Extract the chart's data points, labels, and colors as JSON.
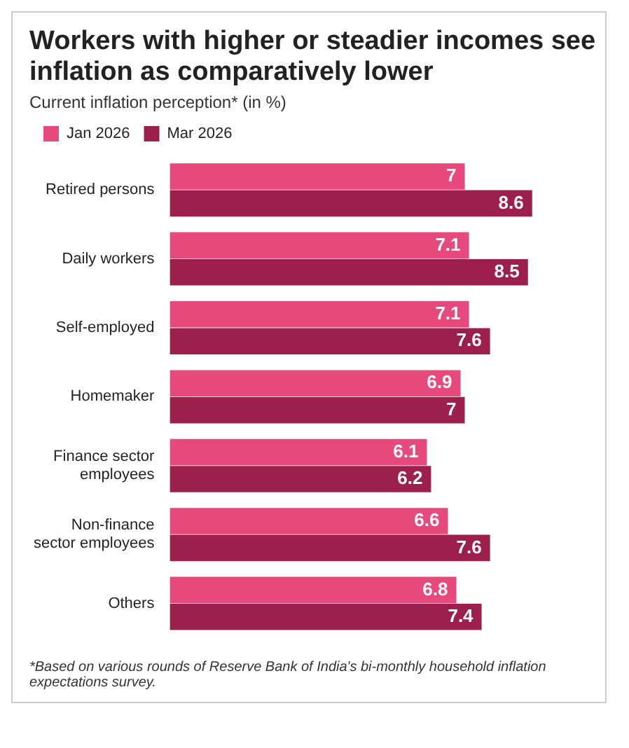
{
  "chart_data": {
    "type": "bar",
    "orientation": "horizontal",
    "title": "Workers with higher or steadier incomes see inflation as comparatively lower",
    "subtitle": "Current inflation perception* (in %)",
    "categories": [
      "Retired persons",
      "Daily workers",
      "Self-employed",
      "Homemaker",
      "Finance sector employees",
      "Non-finance sector employees",
      "Others"
    ],
    "series": [
      {
        "name": "Jan 2026",
        "color": "#e8497c",
        "values": [
          7,
          7.1,
          7.1,
          6.9,
          6.1,
          6.6,
          6.8
        ]
      },
      {
        "name": "Mar 2026",
        "color": "#9c1f4c",
        "values": [
          8.6,
          8.5,
          7.6,
          7,
          6.2,
          7.6,
          7.4
        ]
      }
    ],
    "data_labels": true,
    "legend": "top left",
    "grid": false,
    "annotations": [
      "*Based on various rounds of Reserve Bank of India's bi-monthly household inflation expectations survey."
    ]
  }
}
